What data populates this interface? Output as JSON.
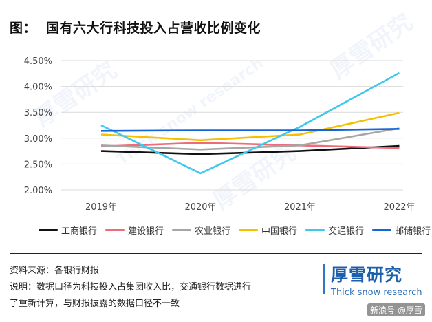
{
  "title": {
    "label": "图：",
    "text": "国有六大行科技投入占营收比例变化"
  },
  "chart_data": {
    "type": "line",
    "categories": [
      "2019年",
      "2020年",
      "2021年",
      "2022年"
    ],
    "yticks": [
      "4.50%",
      "4.00%",
      "3.50%",
      "3.00%",
      "2.50%",
      "2.00%"
    ],
    "ylim": [
      2.0,
      4.5
    ],
    "grid": "horizontal",
    "legend_position": "bottom",
    "series": [
      {
        "name": "工商银行",
        "color": "#111111",
        "values": [
          2.75,
          2.69,
          2.75,
          2.85
        ]
      },
      {
        "name": "建设银行",
        "color": "#f06b78",
        "values": [
          2.84,
          2.91,
          2.86,
          2.81
        ]
      },
      {
        "name": "农业银行",
        "color": "#a6a6a6",
        "values": [
          2.86,
          2.78,
          2.86,
          3.19
        ]
      },
      {
        "name": "中国银行",
        "color": "#f5c000",
        "values": [
          3.07,
          2.96,
          3.07,
          3.49
        ]
      },
      {
        "name": "交通银行",
        "color": "#3fc8ea",
        "values": [
          3.25,
          2.32,
          3.22,
          4.26
        ]
      },
      {
        "name": "邮储银行",
        "color": "#1565d8",
        "values": [
          3.14,
          3.15,
          3.15,
          3.18
        ]
      }
    ]
  },
  "notes": {
    "source": "资料来源：各银行财报",
    "desc1": "说明：数据口径为科技投入占集团收入比，交通银行数据进行",
    "desc2": "了重新计算，与财报披露的数据口径不一致"
  },
  "brand": {
    "cn": "厚雪研究",
    "en": "Thick snow research"
  },
  "source_tag": "新浪号 @厚雪",
  "watermarks": [
    "厚雪研究",
    "Thick snow research"
  ]
}
